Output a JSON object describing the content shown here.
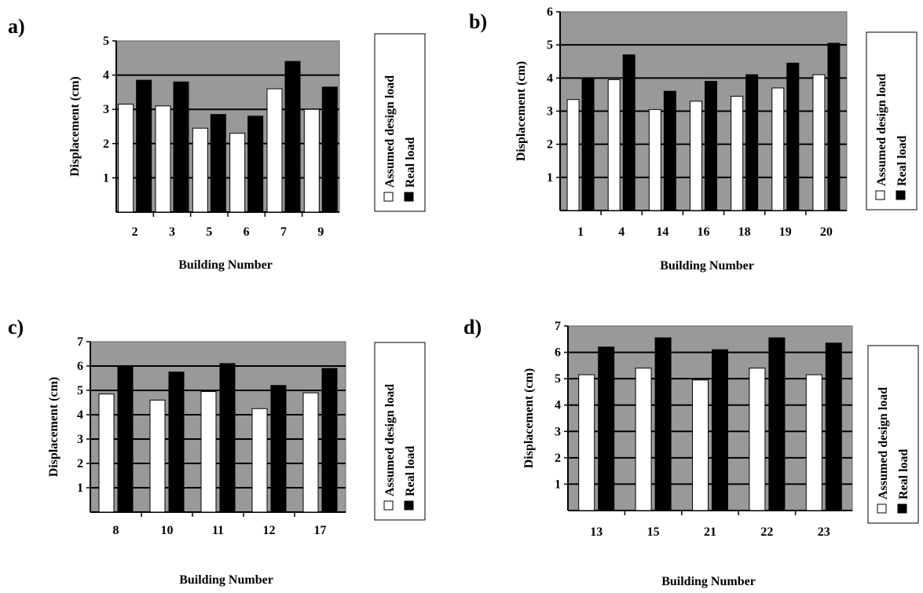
{
  "chart_data": [
    {
      "panel_label": "a)",
      "type": "bar",
      "xlabel": "Building Number",
      "ylabel": "Displacement (cm)",
      "ylim": [
        0,
        5
      ],
      "yticks": [
        "1",
        "2",
        "3",
        "4",
        "5"
      ],
      "categories": [
        "2",
        "3",
        "5",
        "6",
        "7",
        "9"
      ],
      "grid": true,
      "legend_position": "right",
      "series": [
        {
          "name": "Assumed design load",
          "color": "#ffffff",
          "values": [
            3.15,
            3.1,
            2.45,
            2.3,
            3.6,
            3.0
          ]
        },
        {
          "name": "Real load",
          "color": "#000000",
          "values": [
            3.85,
            3.8,
            2.85,
            2.8,
            4.4,
            3.65
          ]
        }
      ]
    },
    {
      "panel_label": "b)",
      "type": "bar",
      "xlabel": "Building Number",
      "ylabel": "Displacement (cm)",
      "ylim": [
        0,
        6
      ],
      "yticks": [
        "1",
        "2",
        "3",
        "4",
        "5",
        "6"
      ],
      "categories": [
        "1",
        "4",
        "14",
        "16",
        "18",
        "19",
        "20"
      ],
      "grid": true,
      "legend_position": "right",
      "series": [
        {
          "name": "Assumed design load",
          "color": "#ffffff",
          "values": [
            3.35,
            3.95,
            3.05,
            3.3,
            3.45,
            3.7,
            4.1
          ]
        },
        {
          "name": "Real load",
          "color": "#000000",
          "values": [
            4.0,
            4.7,
            3.6,
            3.9,
            4.1,
            4.45,
            5.05
          ]
        }
      ]
    },
    {
      "panel_label": "c)",
      "type": "bar",
      "xlabel": "Building Number",
      "ylabel": "Displacement (cm)",
      "ylim": [
        0,
        7
      ],
      "yticks": [
        "1",
        "2",
        "3",
        "4",
        "5",
        "6",
        "7"
      ],
      "categories": [
        "8",
        "10",
        "11",
        "12",
        "17"
      ],
      "grid": true,
      "legend_position": "right",
      "series": [
        {
          "name": "Assumed design load",
          "color": "#ffffff",
          "values": [
            4.85,
            4.6,
            4.95,
            4.25,
            4.9
          ]
        },
        {
          "name": "Real load",
          "color": "#000000",
          "values": [
            6.0,
            5.75,
            6.1,
            5.2,
            5.9
          ]
        }
      ]
    },
    {
      "panel_label": "d)",
      "type": "bar",
      "xlabel": "Building Number",
      "ylabel": "Displacement (cm)",
      "ylim": [
        0,
        7
      ],
      "yticks": [
        "1",
        "2",
        "3",
        "4",
        "5",
        "6",
        "7"
      ],
      "categories": [
        "13",
        "15",
        "21",
        "22",
        "23"
      ],
      "grid": true,
      "legend_position": "right",
      "series": [
        {
          "name": "Assumed design load",
          "color": "#ffffff",
          "values": [
            5.15,
            5.4,
            4.95,
            5.4,
            5.15
          ]
        },
        {
          "name": "Real load",
          "color": "#000000",
          "values": [
            6.2,
            6.55,
            6.1,
            6.55,
            6.35
          ]
        }
      ]
    }
  ],
  "colors": {
    "plot_background": "#999999",
    "gridline": "#000000",
    "page_background": "#ffffff"
  }
}
